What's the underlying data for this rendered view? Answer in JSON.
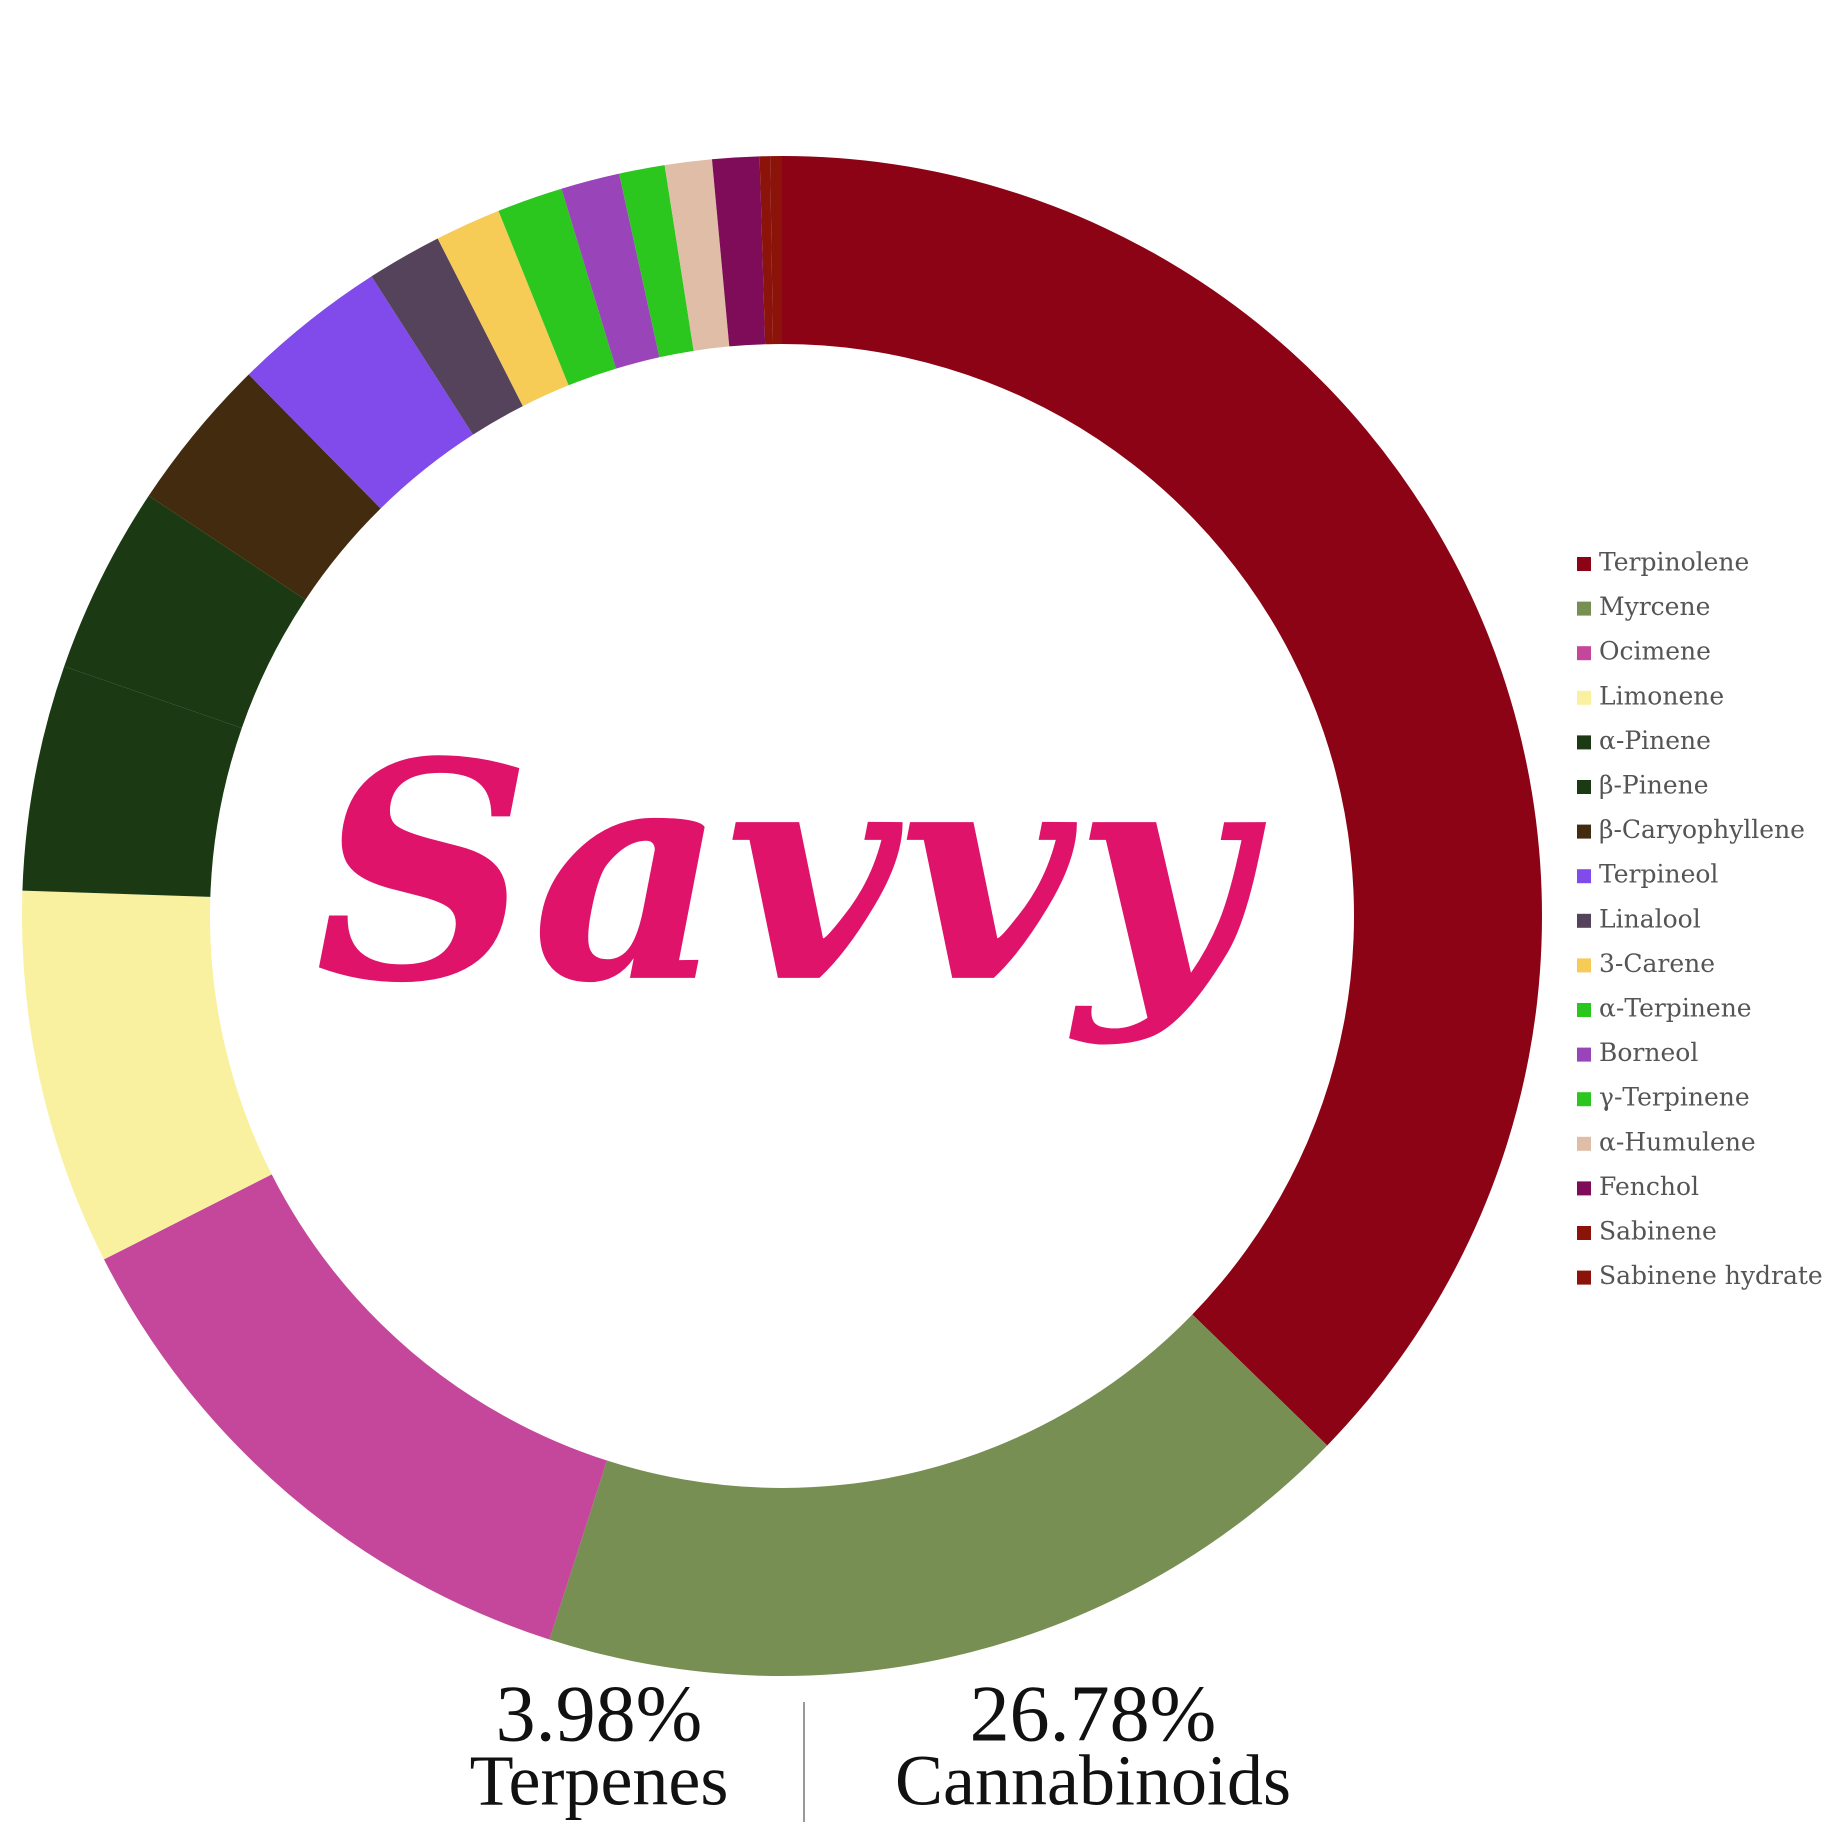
{
  "chart_data": {
    "type": "donut",
    "logo": "Savvy",
    "categories": [
      "Terpinolene",
      "Myrcene",
      "Ocimene",
      "Limonene",
      "α-Pinene",
      "β-Pinene",
      "β-Caryophyllene",
      "Terpineol",
      "Linalool",
      "3-Carene",
      "α-Terpinene",
      "Borneol",
      "γ-Terpinene",
      "α-Humulene",
      "Fenchol",
      "Sabinene",
      "Sabinene hydrate"
    ],
    "values": [
      37.3,
      17.7,
      12.6,
      8.0,
      4.8,
      4.0,
      3.3,
      3.3,
      1.6,
      1.4,
      1.4,
      1.25,
      0.97,
      1.0,
      1.0,
      0.22,
      0.25
    ],
    "colors": [
      "#8c0315",
      "#778f53",
      "#c4479b",
      "#f9f19f",
      "#1b3a14",
      "#1b3a14",
      "#432b10",
      "#814aea",
      "#55435c",
      "#f6cb56",
      "#2bc61e",
      "#9a44b9",
      "#2bc61e",
      "#dfbda6",
      "#7e0c58",
      "#8c1309",
      "#8c1309"
    ],
    "stats": [
      {
        "value": "3.98%",
        "label": "Terpenes"
      },
      {
        "value": "26.78%",
        "label": "Cannabinoids"
      }
    ]
  }
}
